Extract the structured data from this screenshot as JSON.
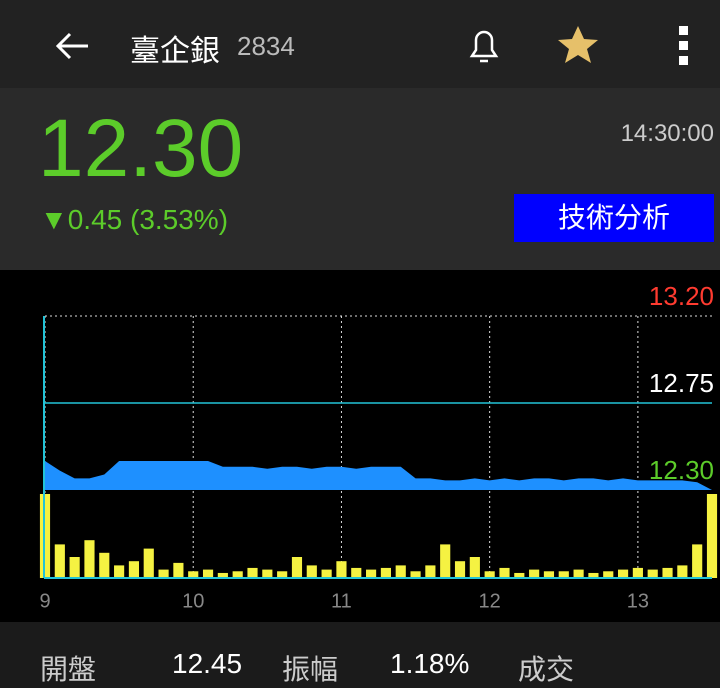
{
  "header": {
    "title": "臺企銀",
    "code": "2834"
  },
  "quote": {
    "price": "12.30",
    "time": "14:30:00",
    "change": "▼0.45 (3.53%)",
    "button": "技術分析"
  },
  "chart_data": {
    "type": "line",
    "x": [
      9.0,
      9.1,
      9.2,
      9.3,
      9.4,
      9.5,
      9.6,
      9.7,
      9.8,
      9.9,
      10.0,
      10.1,
      10.2,
      10.3,
      10.4,
      10.5,
      10.6,
      10.7,
      10.8,
      10.9,
      11.0,
      11.1,
      11.2,
      11.3,
      11.4,
      11.5,
      11.6,
      11.7,
      11.8,
      11.9,
      12.0,
      12.1,
      12.2,
      12.3,
      12.4,
      12.5,
      12.6,
      12.7,
      12.8,
      12.9,
      13.0,
      13.1,
      13.2,
      13.3,
      13.4,
      13.5
    ],
    "series": [
      {
        "color": "#1e90ff",
        "values": [
          12.45,
          12.4,
          12.36,
          12.36,
          12.38,
          12.45,
          12.45,
          12.45,
          12.45,
          12.45,
          12.45,
          12.45,
          12.42,
          12.42,
          12.42,
          12.41,
          12.42,
          12.42,
          12.41,
          12.42,
          12.42,
          12.41,
          12.42,
          12.42,
          12.42,
          12.36,
          12.36,
          12.35,
          12.35,
          12.36,
          12.35,
          12.36,
          12.35,
          12.36,
          12.36,
          12.35,
          12.36,
          12.36,
          12.35,
          12.36,
          12.35,
          12.35,
          12.35,
          12.35,
          12.34,
          12.3
        ]
      },
      {
        "color": "#f5f242",
        "values": [
          100,
          40,
          25,
          45,
          30,
          15,
          20,
          35,
          10,
          18,
          8,
          10,
          6,
          8,
          12,
          10,
          8,
          25,
          15,
          10,
          20,
          12,
          10,
          12,
          15,
          8,
          15,
          40,
          20,
          25,
          8,
          12,
          6,
          10,
          8,
          8,
          10,
          6,
          8,
          10,
          12,
          10,
          12,
          15,
          40,
          100
        ]
      }
    ],
    "reference": 12.75,
    "reference_color": "#22c4d8",
    "xlim": [
      9,
      13.5
    ],
    "xticks": [
      9,
      10,
      11,
      12,
      13
    ],
    "ylim": [
      12.3,
      13.2
    ],
    "yticks": [
      {
        "value": 12.3,
        "label": "12.30"
      },
      {
        "value": 12.75,
        "label": "12.75"
      },
      {
        "value": 13.2,
        "label": "13.20"
      }
    ],
    "ytick_colors": [
      "#5ccc2a",
      "#ffffff",
      "#ff3b30"
    ],
    "grid": true
  },
  "stats": [
    {
      "label": "開盤",
      "value": "12.45"
    },
    {
      "label": "振幅",
      "value": "1.18%"
    },
    {
      "label": "成交"
    }
  ]
}
